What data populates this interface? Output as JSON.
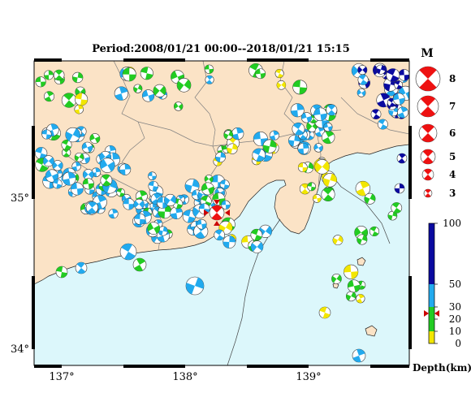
{
  "map": {
    "title": "Period:2008/01/21 00:00--2018/01/21 15:15",
    "lon_labels": [
      "137°",
      "138°",
      "139°"
    ],
    "lat_labels": [
      "35°",
      "34°"
    ],
    "colors": {
      "land": "#fbe3c6",
      "sea": "#dcf7fb",
      "border": "#808080",
      "coast": "#222222"
    }
  },
  "magnitude_legend": {
    "title": "M",
    "items": [
      "8",
      "7",
      "6",
      "5",
      "4",
      "3"
    ],
    "color": "#ee1111"
  },
  "depth_legend": {
    "title": "Depth(km)",
    "ticks": [
      "100",
      "50",
      "30",
      "20",
      "10",
      "0"
    ],
    "colors": {
      "0-10": "#f2e600",
      "10-20": "#22cc22",
      "20-30": "#22cc22",
      "30-50": "#22aaee",
      "50-100": "#0a0aa0"
    }
  },
  "mainshock": {
    "marker": "red-triangle-marker",
    "depth_marker": "red-arrow-marker"
  }
}
